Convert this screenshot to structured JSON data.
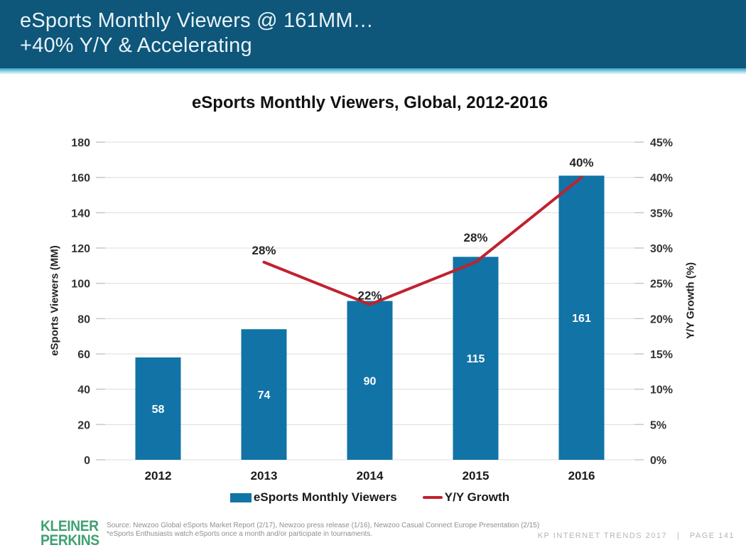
{
  "header": {
    "title_line1": "eSports Monthly Viewers @ 161MM…",
    "title_line2": "+40% Y/Y & Accelerating"
  },
  "chart_data": {
    "type": "bar",
    "title": "eSports Monthly Viewers, Global, 2012-2016",
    "categories": [
      "2012",
      "2013",
      "2014",
      "2015",
      "2016"
    ],
    "series": [
      {
        "name": "eSports Monthly Viewers",
        "type": "bar",
        "axis": "left",
        "values": [
          58,
          74,
          90,
          115,
          161
        ],
        "color": "#1173a6",
        "value_label_color": "#ffffff"
      },
      {
        "name": "Y/Y Growth",
        "type": "line",
        "axis": "right",
        "values": [
          null,
          28,
          22,
          28,
          40
        ],
        "point_labels": [
          "",
          "28%",
          "22%",
          "28%",
          "40%"
        ],
        "label_dy": [
          0,
          -11,
          -7,
          -29,
          -15
        ],
        "color": "#c1212e"
      }
    ],
    "left_axis": {
      "label": "eSports Viewers (MM)",
      "min": 0,
      "max": 180,
      "step": 20
    },
    "right_axis": {
      "label": "Y/Y Growth (%)",
      "min": 0,
      "max": 45,
      "step": 5,
      "suffix": "%"
    },
    "grid": true,
    "legend_position": "bottom"
  },
  "legend": {
    "bar_label": "eSports Monthly Viewers",
    "line_label": "Y/Y Growth"
  },
  "footer": {
    "logo_line1": "KLEINER",
    "logo_line2": "PERKINS",
    "source_line1": "Source: Newzoo Global eSports Market Report (2/17), Newzoo press release (1/16), Newzoo Casual Connect Europe Presentation (2/15)",
    "source_line2": "*eSports Enthusiasts watch eSports once a month and/or participate in tournaments.",
    "page_label": "KP INTERNET TRENDS 2017   |   PAGE 141"
  },
  "colors": {
    "header_bg": "#0e567a",
    "bar": "#1173a6",
    "line": "#c1212e",
    "grid": "#dcdcdc",
    "tick": "#c8c8c8",
    "tick_label": "#333333",
    "category_label": "#1a1a1a",
    "point_label": "#262626"
  }
}
